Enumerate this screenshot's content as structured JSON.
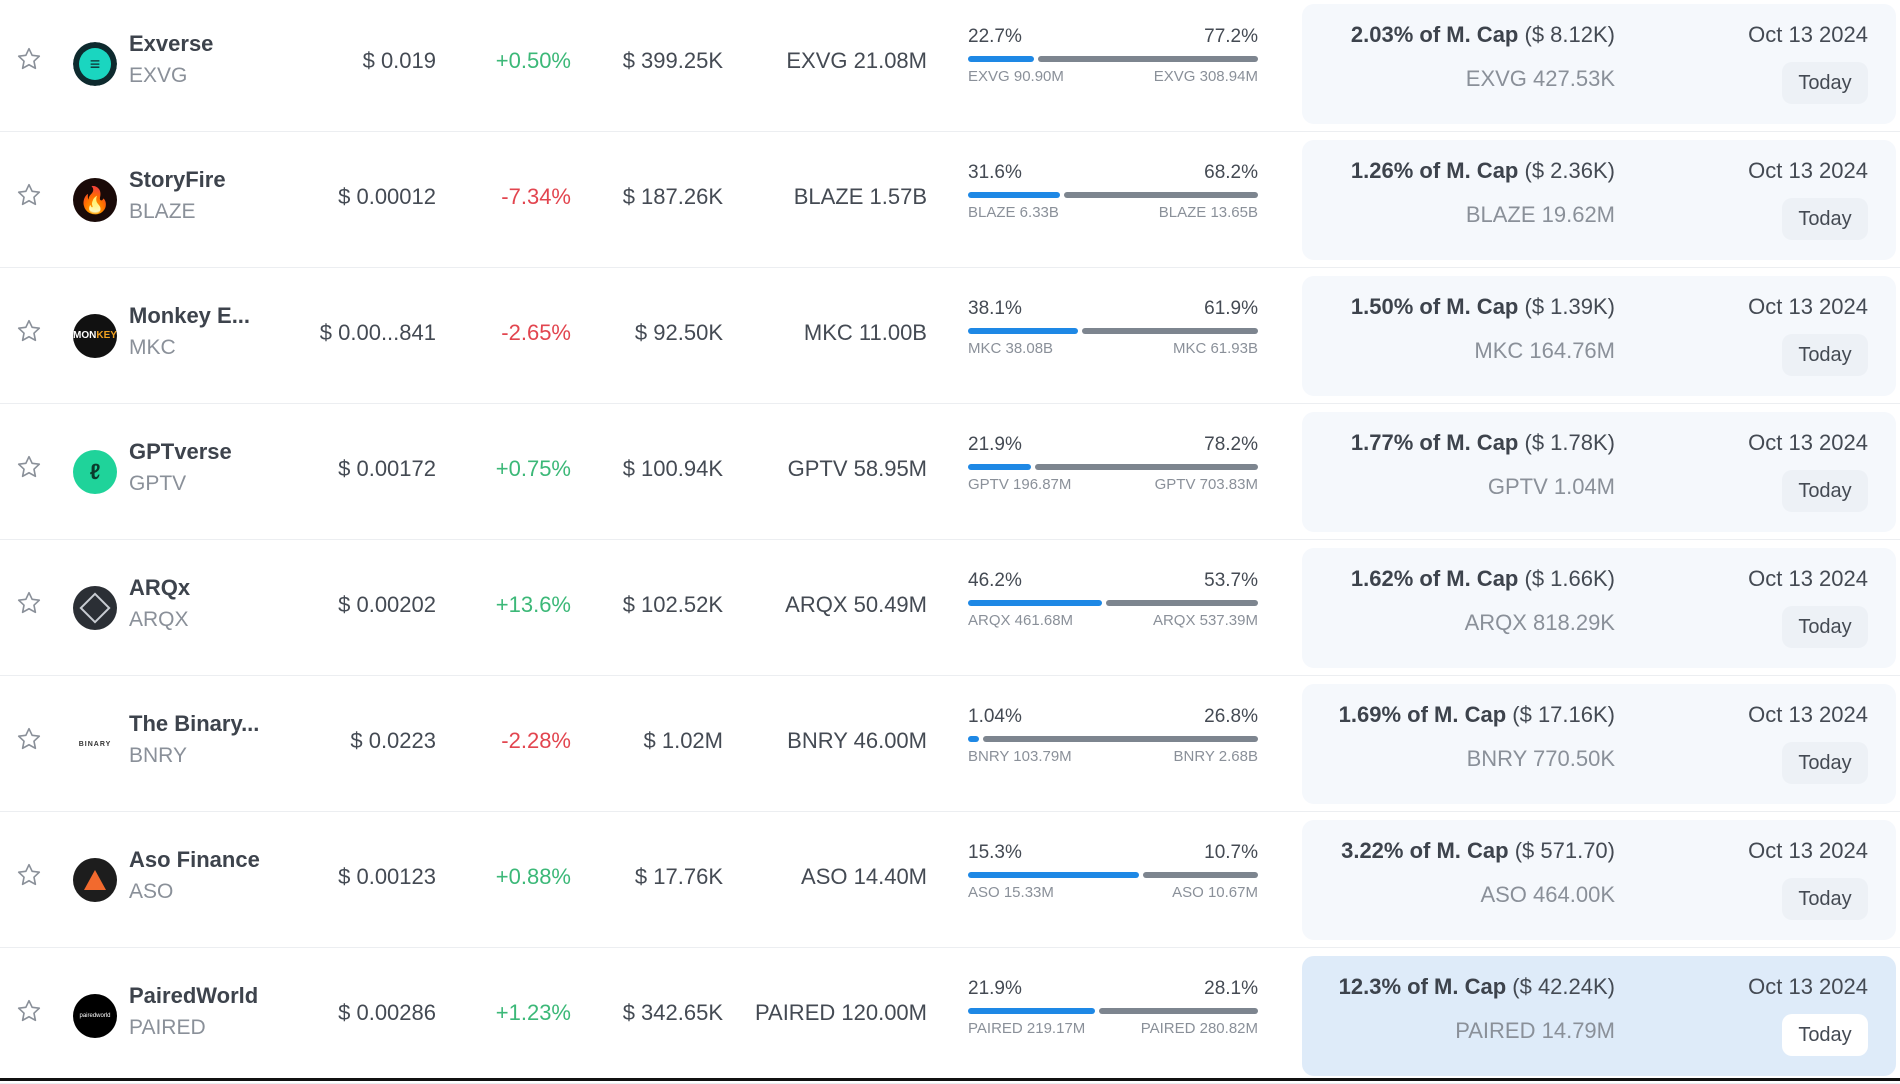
{
  "colors": {
    "up": "#3cb878",
    "down": "#e2454f",
    "bar_blue": "#1e88e5",
    "bar_gray": "#7d858f",
    "card_bg": "#f5f8fc",
    "card_highlight": "#deebf9"
  },
  "rows": [
    {
      "name": "Exverse",
      "symbol": "EXVG",
      "price": "$ 0.019",
      "change": "+0.50%",
      "trend": "up",
      "volume": "$ 399.25K",
      "supply": "EXVG 21.08M",
      "left_pct": "22.7%",
      "right_pct": "77.2%",
      "left_amt": "EXVG 90.90M",
      "right_amt": "EXVG 308.94M",
      "left_fill": 22.7,
      "right_fill": 77.2,
      "cap_pct": "2.03% of M. Cap",
      "cap_usd": "($ 8.12K)",
      "held": "EXVG 427.53K",
      "date": "Oct 13 2024",
      "today": "Today",
      "logo": "exverse-logo",
      "logo_color": "#1ad6c0",
      "highlight": false
    },
    {
      "name": "StoryFire",
      "symbol": "BLAZE",
      "price": "$ 0.00012",
      "change": "-7.34%",
      "trend": "down",
      "volume": "$ 187.26K",
      "supply": "BLAZE 1.57B",
      "left_pct": "31.6%",
      "right_pct": "68.2%",
      "left_amt": "BLAZE 6.33B",
      "right_amt": "BLAZE 13.65B",
      "left_fill": 31.6,
      "right_fill": 68.2,
      "cap_pct": "1.26% of M. Cap",
      "cap_usd": "($ 2.36K)",
      "held": "BLAZE 19.62M",
      "date": "Oct 13 2024",
      "today": "Today",
      "logo": "storyfire-logo",
      "logo_color": "#e8392b",
      "highlight": false
    },
    {
      "name": "Monkey E...",
      "symbol": "MKC",
      "price": "$ 0.00...841",
      "change": "-2.65%",
      "trend": "down",
      "volume": "$ 92.50K",
      "supply": "MKC 11.00B",
      "left_pct": "38.1%",
      "right_pct": "61.9%",
      "left_amt": "MKC 38.08B",
      "right_amt": "MKC 61.93B",
      "left_fill": 38.1,
      "right_fill": 61.9,
      "cap_pct": "1.50% of M. Cap",
      "cap_usd": "($ 1.39K)",
      "held": "MKC 164.76M",
      "date": "Oct 13 2024",
      "today": "Today",
      "logo": "monkey-logo",
      "logo_color": "#f0a020",
      "highlight": false
    },
    {
      "name": "GPTverse",
      "symbol": "GPTV",
      "price": "$ 0.00172",
      "change": "+0.75%",
      "trend": "up",
      "volume": "$ 100.94K",
      "supply": "GPTV 58.95M",
      "left_pct": "21.9%",
      "right_pct": "78.2%",
      "left_amt": "GPTV 196.87M",
      "right_amt": "GPTV 703.83M",
      "left_fill": 21.9,
      "right_fill": 78.2,
      "cap_pct": "1.77% of M. Cap",
      "cap_usd": "($ 1.78K)",
      "held": "GPTV 1.04M",
      "date": "Oct 13 2024",
      "today": "Today",
      "logo": "gptverse-logo",
      "logo_color": "#1fd39a",
      "highlight": false
    },
    {
      "name": "ARQx",
      "symbol": "ARQX",
      "price": "$ 0.00202",
      "change": "+13.6%",
      "trend": "up",
      "volume": "$ 102.52K",
      "supply": "ARQX 50.49M",
      "left_pct": "46.2%",
      "right_pct": "53.7%",
      "left_amt": "ARQX 461.68M",
      "right_amt": "ARQX 537.39M",
      "left_fill": 46.2,
      "right_fill": 53.7,
      "cap_pct": "1.62% of M. Cap",
      "cap_usd": "($ 1.66K)",
      "held": "ARQX 818.29K",
      "date": "Oct 13 2024",
      "today": "Today",
      "logo": "arqx-logo",
      "logo_color": "#555b63",
      "highlight": false
    },
    {
      "name": "The Binary...",
      "symbol": "BNRY",
      "price": "$ 0.0223",
      "change": "-2.28%",
      "trend": "down",
      "volume": "$ 1.02M",
      "supply": "BNRY 46.00M",
      "left_pct": "1.04%",
      "right_pct": "26.8%",
      "left_amt": "BNRY 103.79M",
      "right_amt": "BNRY 2.68B",
      "left_fill": 1.04,
      "right_fill": 26.8,
      "cap_pct": "1.69% of M. Cap",
      "cap_usd": "($ 17.16K)",
      "held": "BNRY 770.50K",
      "date": "Oct 13 2024",
      "today": "Today",
      "logo": "binary-logo",
      "logo_color": "#333333",
      "highlight": false
    },
    {
      "name": "Aso Finance",
      "symbol": "ASO",
      "price": "$ 0.00123",
      "change": "+0.88%",
      "trend": "up",
      "volume": "$ 17.76K",
      "supply": "ASO 14.40M",
      "left_pct": "15.3%",
      "right_pct": "10.7%",
      "left_amt": "ASO 15.33M",
      "right_amt": "ASO 10.67M",
      "left_fill": 15.3,
      "right_fill": 10.7,
      "cap_pct": "3.22% of M. Cap",
      "cap_usd": "($ 571.70)",
      "held": "ASO 464.00K",
      "date": "Oct 13 2024",
      "today": "Today",
      "logo": "aso-logo",
      "logo_color": "#f26a2e",
      "highlight": false
    },
    {
      "name": "PairedWorld",
      "symbol": "PAIRED",
      "price": "$ 0.00286",
      "change": "+1.23%",
      "trend": "up",
      "volume": "$ 342.65K",
      "supply": "PAIRED 120.00M",
      "left_pct": "21.9%",
      "right_pct": "28.1%",
      "left_amt": "PAIRED 219.17M",
      "right_amt": "PAIRED 280.82M",
      "left_fill": 21.9,
      "right_fill": 28.1,
      "cap_pct": "12.3% of M. Cap",
      "cap_usd": "($ 42.24K)",
      "held": "PAIRED 14.79M",
      "date": "Oct 13 2024",
      "today": "Today",
      "logo": "pairedworld-logo",
      "logo_color": "#ffffff",
      "highlight": true
    }
  ]
}
